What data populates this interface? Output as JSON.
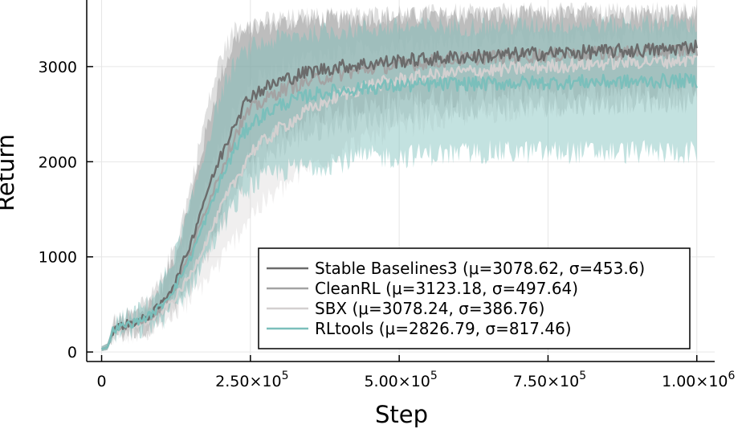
{
  "chart_data": {
    "type": "line",
    "title": "",
    "xlabel": "Step",
    "ylabel": "Return",
    "xlim": [
      -25000,
      1030000
    ],
    "ylim": [
      -100,
      3700
    ],
    "grid": true,
    "legend_position": "bottom-right",
    "x_ticks": [
      {
        "value": 0,
        "mantissa": "0",
        "exponent": ""
      },
      {
        "value": 250000,
        "mantissa": "2.50×10",
        "exponent": "5"
      },
      {
        "value": 500000,
        "mantissa": "5.00×10",
        "exponent": "5"
      },
      {
        "value": 750000,
        "mantissa": "7.50×10",
        "exponent": "5"
      },
      {
        "value": 1000000,
        "mantissa": "1.00×10",
        "exponent": "6"
      }
    ],
    "y_ticks": [
      {
        "value": 0,
        "label": "0"
      },
      {
        "value": 1000,
        "label": "1000"
      },
      {
        "value": 2000,
        "label": "2000"
      },
      {
        "value": 3000,
        "label": "3000"
      }
    ],
    "x": [
      0,
      10000,
      20000,
      40000,
      60000,
      80000,
      100000,
      125000,
      150000,
      175000,
      200000,
      225000,
      250000,
      300000,
      350000,
      400000,
      450000,
      500000,
      550000,
      600000,
      650000,
      700000,
      750000,
      800000,
      850000,
      900000,
      950000,
      1000000
    ],
    "series": [
      {
        "name": "Stable Baselines3 (μ=3078.62, σ=453.6)",
        "color": "#6b6b6b",
        "values": [
          30,
          50,
          240,
          290,
          320,
          380,
          500,
          750,
          1150,
          1650,
          2050,
          2450,
          2700,
          2850,
          2950,
          3000,
          3030,
          3060,
          3080,
          3100,
          3110,
          3130,
          3140,
          3150,
          3160,
          3170,
          3180,
          3220
        ],
        "band_upper": [
          60,
          90,
          300,
          360,
          410,
          500,
          680,
          1050,
          1600,
          2300,
          2900,
          3300,
          3400,
          3450,
          3500,
          3500,
          3520,
          3520,
          3530,
          3530,
          3540,
          3540,
          3540,
          3550,
          3550,
          3550,
          3560,
          3560
        ],
        "band_lower": [
          10,
          20,
          200,
          230,
          250,
          290,
          360,
          520,
          800,
          1150,
          1450,
          1800,
          2050,
          2300,
          2450,
          2550,
          2600,
          2650,
          2680,
          2700,
          2720,
          2730,
          2740,
          2750,
          2760,
          2770,
          2780,
          2800
        ]
      },
      {
        "name": "CleanRL (μ=3123.18, σ=497.64)",
        "color": "#a3a3a3",
        "values": [
          30,
          50,
          240,
          280,
          310,
          360,
          470,
          700,
          1050,
          1500,
          1900,
          2300,
          2550,
          2750,
          2850,
          2920,
          2980,
          3020,
          3050,
          3080,
          3100,
          3110,
          3120,
          3130,
          3140,
          3150,
          3160,
          3180
        ],
        "band_upper": [
          60,
          90,
          310,
          370,
          430,
          540,
          740,
          1150,
          1750,
          2500,
          3100,
          3400,
          3450,
          3500,
          3520,
          3530,
          3540,
          3550,
          3550,
          3560,
          3560,
          3570,
          3570,
          3570,
          3580,
          3580,
          3580,
          3590
        ],
        "band_lower": [
          10,
          20,
          190,
          210,
          230,
          260,
          320,
          460,
          700,
          1000,
          1300,
          1650,
          1900,
          2150,
          2300,
          2400,
          2450,
          2500,
          2530,
          2550,
          2570,
          2580,
          2590,
          2600,
          2610,
          2620,
          2630,
          2640
        ]
      },
      {
        "name": "SBX (μ=3078.24, σ=386.76)",
        "color": "#d3d0d0",
        "values": [
          30,
          50,
          230,
          260,
          290,
          330,
          420,
          580,
          820,
          1150,
          1500,
          1800,
          2100,
          2350,
          2550,
          2700,
          2800,
          2860,
          2900,
          2940,
          2960,
          2980,
          3000,
          3020,
          3040,
          3050,
          3060,
          3080
        ],
        "band_upper": [
          60,
          80,
          290,
          330,
          380,
          450,
          590,
          850,
          1250,
          1750,
          2200,
          2550,
          2800,
          3000,
          3100,
          3150,
          3200,
          3230,
          3250,
          3270,
          3280,
          3290,
          3300,
          3310,
          3320,
          3320,
          3330,
          3340
        ],
        "band_lower": [
          10,
          20,
          180,
          200,
          220,
          250,
          300,
          400,
          550,
          750,
          950,
          1200,
          1450,
          1700,
          1950,
          2100,
          2250,
          2350,
          2420,
          2480,
          2520,
          2550,
          2580,
          2600,
          2620,
          2640,
          2650,
          2670
        ]
      },
      {
        "name": "RLtools (μ=2826.79, σ=817.46)",
        "color": "#7bbfbb",
        "values": [
          30,
          50,
          240,
          280,
          320,
          380,
          480,
          700,
          1000,
          1400,
          1800,
          2150,
          2400,
          2600,
          2700,
          2750,
          2780,
          2800,
          2810,
          2820,
          2820,
          2830,
          2830,
          2840,
          2840,
          2840,
          2850,
          2850
        ],
        "band_upper": [
          60,
          90,
          300,
          360,
          420,
          520,
          700,
          1050,
          1550,
          2150,
          2700,
          3050,
          3200,
          3300,
          3350,
          3380,
          3400,
          3410,
          3420,
          3420,
          3430,
          3430,
          3440,
          3440,
          3440,
          3450,
          3450,
          3450
        ],
        "band_lower": [
          10,
          20,
          190,
          210,
          230,
          270,
          340,
          480,
          700,
          1000,
          1300,
          1550,
          1750,
          1900,
          1950,
          2000,
          2050,
          2050,
          2080,
          2080,
          2100,
          2100,
          2100,
          2100,
          2100,
          2100,
          2100,
          2100
        ]
      }
    ]
  }
}
